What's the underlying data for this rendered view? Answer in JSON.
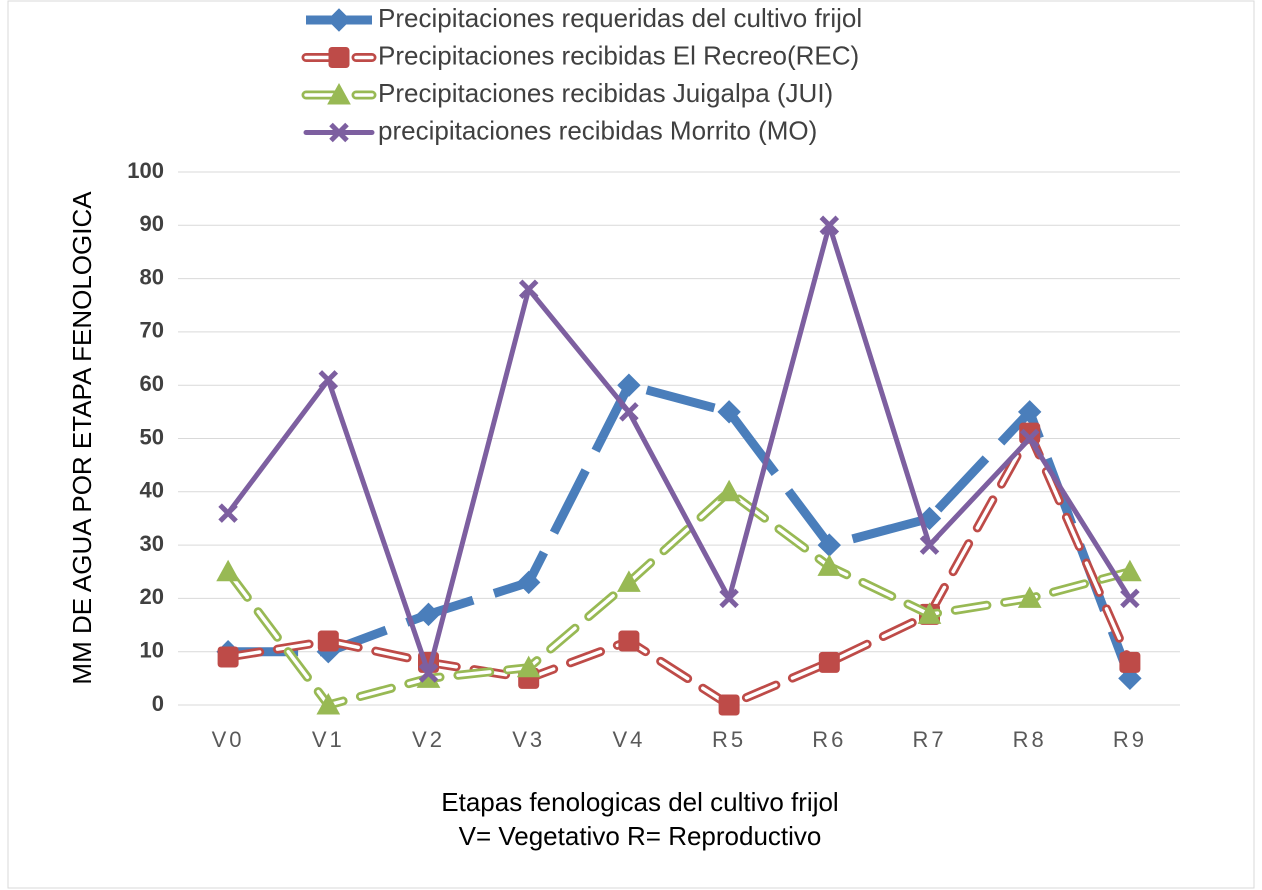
{
  "chart_data": {
    "type": "line",
    "y_label": "MM DE AGUA POR ETAPA FENOLOGICA",
    "x_label": [
      "Etapas fenologicas del cultivo frijol",
      "V= Vegetativo  R= Reproductivo"
    ],
    "categories": [
      "V0",
      "V1",
      "V2",
      "V3",
      "V4",
      "R5",
      "R6",
      "R7",
      "R8",
      "R9"
    ],
    "series": [
      {
        "name": "Precipitaciones requeridas del cultivo frijol",
        "color": "#4a7ebb",
        "values": [
          10,
          10,
          17,
          23,
          60,
          55,
          30,
          35,
          55,
          5
        ]
      },
      {
        "name": "Precipitaciones recibidas El Recreo(REC)",
        "color": "#be4b48",
        "values": [
          9,
          12,
          8,
          5,
          12,
          0,
          8,
          17,
          51,
          8
        ]
      },
      {
        "name": "Precipitaciones recibidas Juigalpa (JUI)",
        "color": "#98b954",
        "values": [
          25,
          0,
          5,
          7,
          23,
          40,
          26,
          17,
          20,
          25
        ]
      },
      {
        "name": "precipitaciones recibidas Morrito (MO)",
        "color": "#7d5fa0",
        "values": [
          36,
          61,
          6,
          78,
          55,
          20,
          90,
          30,
          50,
          20
        ]
      }
    ],
    "ylim": [
      0,
      100
    ],
    "yticks": [
      0,
      10,
      20,
      30,
      40,
      50,
      60,
      70,
      80,
      90,
      100
    ],
    "grid": true
  }
}
